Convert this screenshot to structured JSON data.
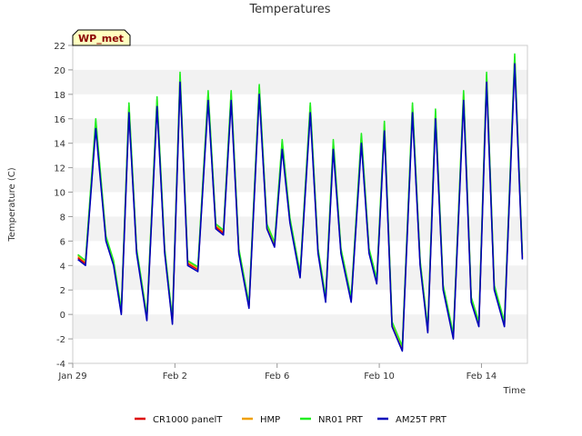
{
  "chart_data": {
    "type": "line",
    "title": "Temperatures",
    "xlabel": "Time",
    "ylabel": "Temperature (C)",
    "badge": "WP_met",
    "xlim": [
      0,
      17.8
    ],
    "ylim": [
      -4,
      22
    ],
    "yticks": [
      -4,
      -2,
      0,
      2,
      4,
      6,
      8,
      10,
      12,
      14,
      16,
      18,
      20,
      22
    ],
    "xticks": [
      {
        "value": 0,
        "label": "Jan 29"
      },
      {
        "value": 4,
        "label": "Feb 2"
      },
      {
        "value": 8,
        "label": "Feb 6"
      },
      {
        "value": 12,
        "label": "Feb 10"
      },
      {
        "value": 16,
        "label": "Feb 14"
      }
    ],
    "grid_bands": true,
    "legend_position": "bottom-center",
    "series": [
      {
        "name": "CR1000 panelT",
        "color": "#dd0000",
        "offset": 0.3
      },
      {
        "name": "HMP",
        "color": "#f0a000",
        "offset": 0.6
      },
      {
        "name": "NR01 PRT",
        "color": "#22ee22",
        "offset": 0.8
      },
      {
        "name": "AM25T PRT",
        "color": "#0000bb",
        "offset": 0.0
      }
    ],
    "x": [
      0.2,
      0.5,
      0.9,
      1.3,
      1.6,
      1.9,
      2.2,
      2.5,
      2.9,
      3.3,
      3.6,
      3.9,
      4.2,
      4.5,
      4.9,
      5.3,
      5.6,
      5.9,
      6.2,
      6.5,
      6.9,
      7.3,
      7.6,
      7.9,
      8.2,
      8.5,
      8.9,
      9.3,
      9.6,
      9.9,
      10.2,
      10.5,
      10.9,
      11.3,
      11.6,
      11.9,
      12.2,
      12.5,
      12.9,
      13.3,
      13.6,
      13.9,
      14.2,
      14.5,
      14.9,
      15.3,
      15.6,
      15.9,
      16.2,
      16.5,
      16.9,
      17.3,
      17.6
    ],
    "values": [
      4.5,
      4.0,
      15.2,
      6.0,
      4.0,
      0.0,
      16.5,
      5.0,
      -0.5,
      17.0,
      5.0,
      -0.8,
      19.0,
      4.0,
      3.5,
      17.5,
      7.0,
      6.5,
      17.5,
      5.0,
      0.5,
      18.0,
      7.0,
      5.5,
      13.5,
      7.5,
      3.0,
      16.5,
      5.0,
      1.0,
      13.5,
      5.0,
      1.0,
      14.0,
      5.0,
      2.5,
      15.0,
      -1.0,
      -3.0,
      16.5,
      4.0,
      -1.5,
      16.0,
      2.0,
      -2.0,
      17.5,
      1.0,
      -1.0,
      19.0,
      2.0,
      -1.0,
      20.5,
      4.5
    ]
  }
}
